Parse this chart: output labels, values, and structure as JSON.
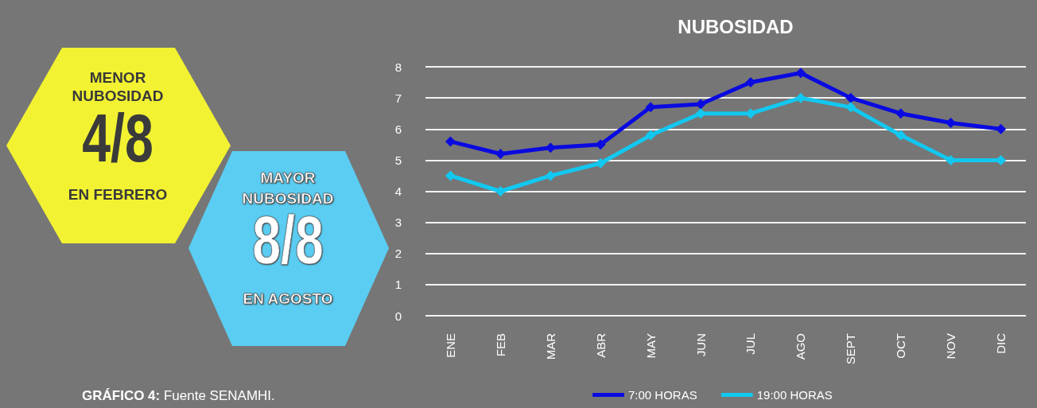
{
  "chart_data": {
    "type": "line",
    "title": "NUBOSIDAD",
    "categories": [
      "ENE",
      "FEB",
      "MAR",
      "ABR",
      "MAY",
      "JUN",
      "JUL",
      "AGO",
      "SEPT",
      "OCT",
      "NOV",
      "DIC"
    ],
    "series": [
      {
        "name": "7:00 HORAS",
        "color": "#0a0ae0",
        "values": [
          5.6,
          5.2,
          5.4,
          5.5,
          6.7,
          6.8,
          7.5,
          7.8,
          7.0,
          6.5,
          6.2,
          6.0
        ]
      },
      {
        "name": "19:00 HORAS",
        "color": "#12c8f0",
        "values": [
          4.5,
          4.0,
          4.5,
          4.9,
          5.8,
          6.5,
          6.5,
          7.0,
          6.7,
          5.8,
          5.0,
          5.0
        ]
      }
    ],
    "ylim": [
      0,
      8
    ],
    "yticks": [
      0,
      1,
      2,
      3,
      4,
      5,
      6,
      7,
      8
    ],
    "grid": "y",
    "legend": "bottom",
    "marker": "diamond",
    "line_style": "solid",
    "annotations": [
      "MENOR",
      "NUBOSIDAD",
      "4/8",
      "EN FEBRERO",
      "MAYOR",
      "NUBOSIDAD",
      "8/8",
      "EN AGOSTO",
      "GRÁFICO 4: Fuente SENAMHI."
    ]
  }
}
